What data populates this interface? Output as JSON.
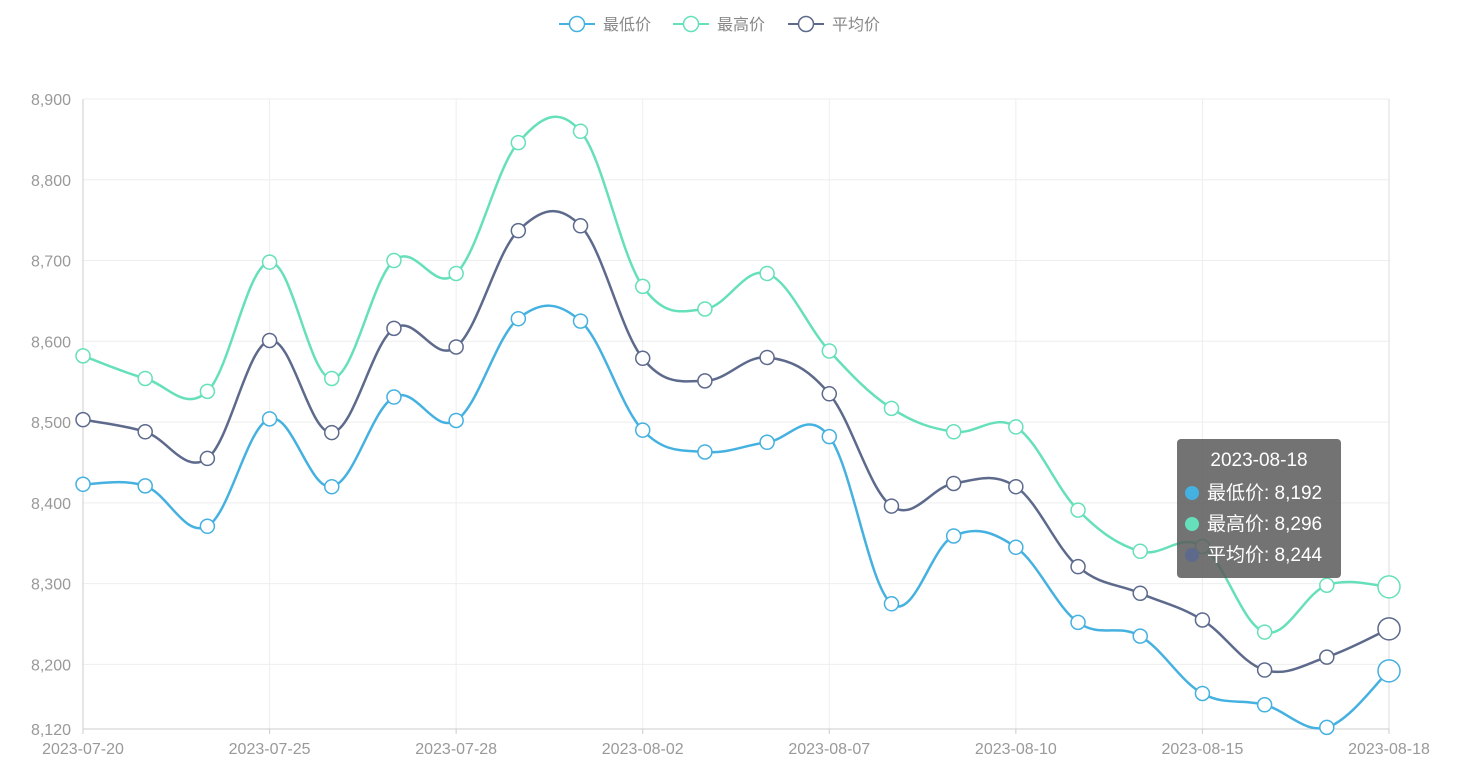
{
  "chart_data": {
    "type": "line",
    "smooth": true,
    "legend_position": "top-center",
    "grid": true,
    "ylim": [
      8120,
      8900
    ],
    "y_ticks": [
      8120,
      8200,
      8300,
      8400,
      8500,
      8600,
      8700,
      8800,
      8900
    ],
    "y_tick_labels": [
      "8,120",
      "8,200",
      "8,300",
      "8,400",
      "8,500",
      "8,600",
      "8,700",
      "8,800",
      "8,900"
    ],
    "x": [
      "2023-07-20",
      "2023-07-21",
      "2023-07-24",
      "2023-07-25",
      "2023-07-26",
      "2023-07-27",
      "2023-07-28",
      "2023-07-31",
      "2023-08-01",
      "2023-08-02",
      "2023-08-03",
      "2023-08-04",
      "2023-08-07",
      "2023-08-08",
      "2023-08-09",
      "2023-08-10",
      "2023-08-11",
      "2023-08-14",
      "2023-08-15",
      "2023-08-16",
      "2023-08-17",
      "2023-08-18"
    ],
    "x_tick_indices": [
      0,
      3,
      6,
      9,
      12,
      15,
      18,
      21
    ],
    "series": [
      {
        "name": "最低价",
        "color": "#45b1e0",
        "values": [
          8423,
          8421,
          8371,
          8504,
          8420,
          8531,
          8502,
          8628,
          8625,
          8490,
          8463,
          8475,
          8482,
          8275,
          8359,
          8345,
          8252,
          8235,
          8164,
          8150,
          8122,
          8192
        ]
      },
      {
        "name": "最高价",
        "color": "#66e0ba",
        "values": [
          8582,
          8554,
          8538,
          8698,
          8554,
          8700,
          8684,
          8846,
          8860,
          8668,
          8640,
          8684,
          8588,
          8517,
          8488,
          8494,
          8391,
          8340,
          8346,
          8240,
          8298,
          8296
        ]
      },
      {
        "name": "平均价",
        "color": "#5d6a8c",
        "values": [
          8503,
          8488,
          8455,
          8601,
          8487,
          8616,
          8593,
          8737,
          8743,
          8579,
          8551,
          8580,
          8535,
          8396,
          8424,
          8420,
          8321,
          8288,
          8255,
          8193,
          8209,
          8244
        ]
      }
    ]
  },
  "tooltip": {
    "title": "2023-08-18",
    "rows": [
      {
        "text": "最低价: 8,192",
        "color": "#45b1e0"
      },
      {
        "text": "最高价: 8,296",
        "color": "#66e0ba"
      },
      {
        "text": "平均价: 8,244",
        "color": "#5d6a8c"
      }
    ]
  }
}
